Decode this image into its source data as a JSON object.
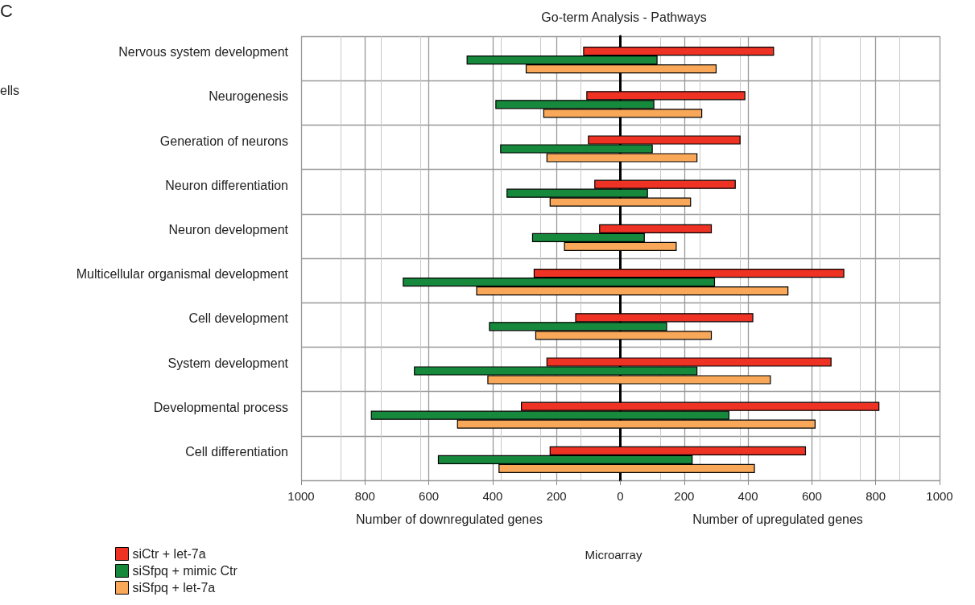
{
  "chart_data": {
    "type": "bar",
    "orientation": "horizontal",
    "title": "Go-term Analysis - Pathways",
    "xlabel": "Number of downregulated genes",
    "annotations": [
      "Number of upregulated genes",
      "Microarray",
      "C",
      "ells"
    ],
    "categories": [
      "Nervous system development",
      "Neurogenesis",
      "Generation of neurons",
      "Neuron differentiation",
      "Neuron development",
      "Multicellular organismal development",
      "Cell development",
      "System development",
      "Developmental process",
      "Cell differentiation"
    ],
    "series": [
      {
        "name": "siCtr + let-7a",
        "color": "#ee3224",
        "base": [
          -115,
          -105,
          -100,
          -80,
          -65,
          -270,
          -140,
          -230,
          -310,
          -220
        ],
        "values": [
          595,
          495,
          475,
          440,
          350,
          970,
          555,
          890,
          1120,
          800
        ]
      },
      {
        "name": "siSfpq + mimic Ctr",
        "color": "#17893d",
        "base": [
          -480,
          -390,
          -375,
          -355,
          -275,
          -680,
          -410,
          -645,
          -780,
          -570
        ],
        "values": [
          595,
          495,
          475,
          440,
          350,
          975,
          555,
          885,
          1120,
          795
        ]
      },
      {
        "name": "siSfpq + let-7a",
        "color": "#f9a85a",
        "base": [
          -295,
          -240,
          -230,
          -220,
          -175,
          -450,
          -265,
          -415,
          -510,
          -380
        ],
        "values": [
          595,
          495,
          470,
          440,
          350,
          975,
          550,
          885,
          1120,
          800
        ]
      }
    ],
    "xlim": [
      -1000,
      1000
    ],
    "xticks": [
      {
        "value": -1000,
        "label": "1000"
      },
      {
        "value": -800,
        "label": "800"
      },
      {
        "value": -600,
        "label": "600"
      },
      {
        "value": -400,
        "label": "400"
      },
      {
        "value": -200,
        "label": "200"
      },
      0,
      200,
      400,
      600,
      800,
      1000
    ],
    "grid": true,
    "legend": "bottom left"
  }
}
